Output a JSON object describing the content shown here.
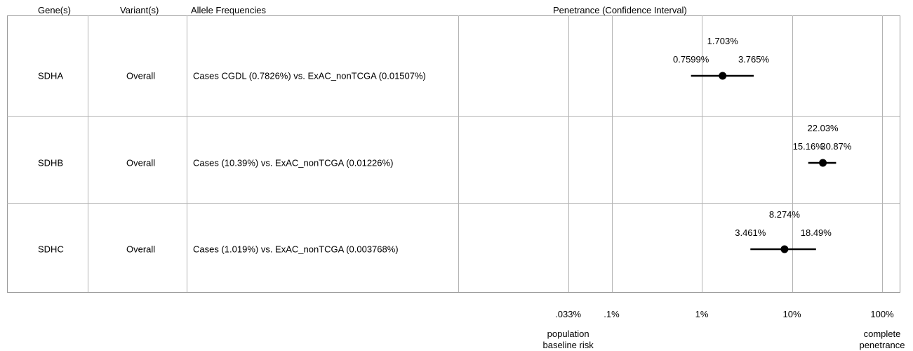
{
  "colors": {
    "grid": "#b3b3b3",
    "border": "#999999",
    "ink": "#000000"
  },
  "headers": {
    "gene": "Gene(s)",
    "variant": "Variant(s)",
    "allele": "Allele Frequencies",
    "penetrance": "Penetrance (Confidence Interval)"
  },
  "rows": [
    {
      "gene": "SDHA",
      "variant": "Overall",
      "allele": "Cases CGDL (0.7826%) vs. ExAC_nonTCGA (0.01507%)"
    },
    {
      "gene": "SDHB",
      "variant": "Overall",
      "allele": "Cases (10.39%) vs. ExAC_nonTCGA (0.01226%)"
    },
    {
      "gene": "SDHC",
      "variant": "Overall",
      "allele": "Cases (1.019%) vs. ExAC_nonTCGA (0.003768%)"
    }
  ],
  "chart_data": {
    "type": "scatter",
    "title": "Penetrance (Confidence Interval)",
    "xscale": "log",
    "xunit": "%",
    "xlim": [
      0.01,
      100
    ],
    "grid": true,
    "categories": [
      "SDHA",
      "SDHB",
      "SDHC"
    ],
    "points": [
      {
        "category": "SDHA",
        "estimate": 1.703,
        "lower": 0.7599,
        "upper": 3.765,
        "estimate_label": "1.703%",
        "lower_label": "0.7599%",
        "upper_label": "3.765%"
      },
      {
        "category": "SDHB",
        "estimate": 22.03,
        "lower": 15.16,
        "upper": 30.87,
        "estimate_label": "22.03%",
        "lower_label": "15.16%",
        "upper_label": "30.87%"
      },
      {
        "category": "SDHC",
        "estimate": 8.274,
        "lower": 3.461,
        "upper": 18.49,
        "estimate_label": "8.274%",
        "lower_label": "3.461%",
        "upper_label": "18.49%"
      }
    ],
    "ticks": [
      {
        "value": 0.033,
        "label": ".033%"
      },
      {
        "value": 0.1,
        "label": ".1%"
      },
      {
        "value": 1,
        "label": "1%"
      },
      {
        "value": 10,
        "label": "10%"
      },
      {
        "value": 100,
        "label": "100%"
      }
    ],
    "tick_notes": [
      {
        "value": 0.033,
        "lines": [
          "population",
          "baseline risk"
        ]
      },
      {
        "value": 100,
        "lines": [
          "complete",
          "penetrance"
        ]
      }
    ]
  }
}
